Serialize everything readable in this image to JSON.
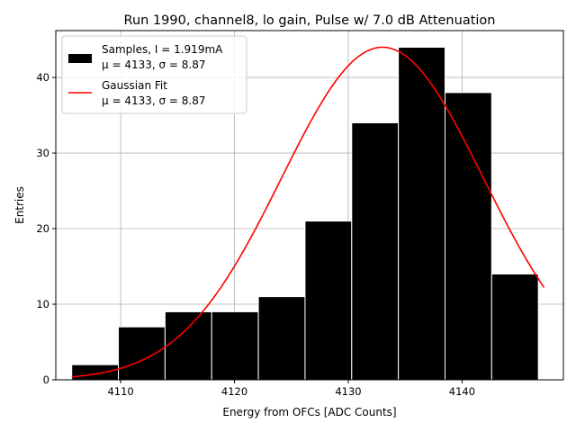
{
  "chart_data": {
    "type": "bar",
    "title": "Run 1990, channel8, lo gain, Pulse w/ 7.0 dB Attenuation",
    "xlabel": "Energy from OFCs [ADC Counts]",
    "ylabel": "Entries",
    "xlim": [
      4104.3,
      4148.9
    ],
    "ylim": [
      0,
      46.2
    ],
    "xticks": [
      4110,
      4120,
      4130,
      4140
    ],
    "yticks": [
      0,
      10,
      20,
      30,
      40
    ],
    "grid": true,
    "legend_position": "top-left",
    "colors": {
      "bars": "#000000",
      "bar_edge": "#ffffff",
      "fit": "#ff0000",
      "grid": "#b0b0b0"
    },
    "histogram": {
      "bin_edges": [
        4105.7,
        4109.8,
        4113.9,
        4118.0,
        4122.1,
        4126.2,
        4130.3,
        4134.4,
        4138.5,
        4142.6,
        4146.7
      ],
      "counts": [
        2,
        7,
        9,
        9,
        11,
        21,
        34,
        44,
        38,
        14
      ]
    },
    "fit": {
      "type": "gaussian",
      "mu": 4133,
      "sigma": 8.87,
      "amplitude": 44,
      "x_range": [
        4105.7,
        4147.2
      ]
    },
    "legend": [
      {
        "line1": "Samples, I = 1.919mA",
        "line2": "μ = 4133, σ = 8.87"
      },
      {
        "line1": "Gaussian Fit",
        "line2": "μ = 4133, σ = 8.87"
      }
    ]
  }
}
